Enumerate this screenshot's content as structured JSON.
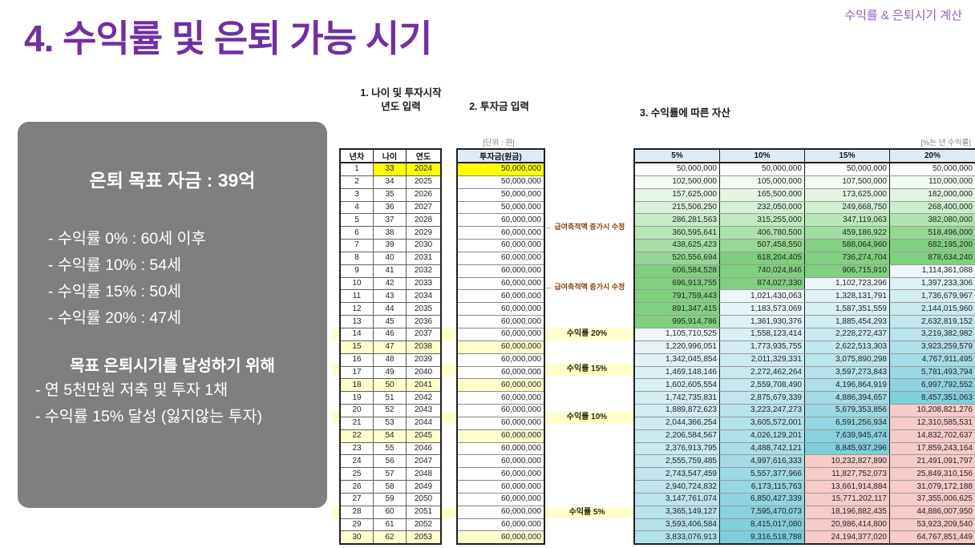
{
  "slide": {
    "title": "4. 수익률 및 은퇴 가능 시기",
    "corner_label": "수익률 & 은퇴시기 계산"
  },
  "summary_panel": {
    "title": "은퇴 목표 자금 : 39억",
    "rate_lines": [
      "- 수익률   0% : 60세 이후",
      "- 수익률 10% : 54세",
      "- 수익률 15% : 50세",
      "- 수익률 20% : 47세"
    ],
    "goal_title": "목표 은퇴시기를 달성하기 위해",
    "goal_lines": [
      "- 연 5천만원 저축 및 투자 1채",
      "- 수익률 15% 달성 (잃지않는 투자)"
    ]
  },
  "sections": {
    "step1_line1": "1. 나이 및 투자시작",
    "step1_line2": "년도 입력",
    "step2": "2. 투자금 입력",
    "step3": "3. 수익률에 따른 자산",
    "unit_note": "[단위 : 원]",
    "rate_note": "[%는 년 수익률]"
  },
  "table": {
    "left_headers": [
      "년차",
      "나이",
      "연도"
    ],
    "principal_header": "투자금(원금)",
    "rate_headers": [
      "5%",
      "10%",
      "15%",
      "20%"
    ],
    "increase_note": "← 급여축적액 증가시 수정",
    "rows": [
      {
        "n": "1",
        "age": "33",
        "year": "2024",
        "principal": "50,000,000",
        "note": "",
        "hl": false,
        "assets": [
          "50,000,000",
          "50,000,000",
          "50,000,000",
          "50,000,000"
        ]
      },
      {
        "n": "2",
        "age": "34",
        "year": "2025",
        "principal": "50,000,000",
        "note": "",
        "hl": false,
        "assets": [
          "102,500,000",
          "105,000,000",
          "107,500,000",
          "110,000,000"
        ]
      },
      {
        "n": "3",
        "age": "35",
        "year": "2026",
        "principal": "50,000,000",
        "note": "",
        "hl": false,
        "assets": [
          "157,625,000",
          "165,500,000",
          "173,625,000",
          "182,000,000"
        ]
      },
      {
        "n": "4",
        "age": "36",
        "year": "2027",
        "principal": "50,000,000",
        "note": "",
        "hl": false,
        "assets": [
          "215,506,250",
          "232,050,000",
          "249,668,750",
          "268,400,000"
        ]
      },
      {
        "n": "5",
        "age": "37",
        "year": "2028",
        "principal": "60,000,000",
        "note": "",
        "hl": false,
        "assets": [
          "286,281,563",
          "315,255,000",
          "347,119,063",
          "382,080,000"
        ]
      },
      {
        "n": "6",
        "age": "38",
        "year": "2029",
        "principal": "60,000,000",
        "note": "← 급여축적액 증가시 수정",
        "hl": false,
        "assets": [
          "360,595,641",
          "406,780,500",
          "459,186,922",
          "518,496,000"
        ]
      },
      {
        "n": "7",
        "age": "39",
        "year": "2030",
        "principal": "60,000,000",
        "note": "",
        "hl": false,
        "assets": [
          "438,625,423",
          "507,458,550",
          "588,064,960",
          "682,195,200"
        ]
      },
      {
        "n": "8",
        "age": "40",
        "year": "2031",
        "principal": "60,000,000",
        "note": "",
        "hl": false,
        "assets": [
          "520,556,694",
          "618,204,405",
          "736,274,704",
          "878,634,240"
        ]
      },
      {
        "n": "9",
        "age": "41",
        "year": "2032",
        "principal": "60,000,000",
        "note": "",
        "hl": false,
        "assets": [
          "606,584,528",
          "740,024,846",
          "906,715,910",
          "1,114,361,088"
        ]
      },
      {
        "n": "10",
        "age": "42",
        "year": "2033",
        "principal": "60,000,000",
        "note": "",
        "hl": false,
        "assets": [
          "696,913,755",
          "874,027,330",
          "1,102,723,296",
          "1,397,233,306"
        ]
      },
      {
        "n": "11",
        "age": "43",
        "year": "2034",
        "principal": "60,000,000",
        "note": "← 급여축적액 증가시 수정",
        "hl": false,
        "assets": [
          "791,759,443",
          "1,021,430,063",
          "1,328,131,791",
          "1,736,679,967"
        ]
      },
      {
        "n": "12",
        "age": "44",
        "year": "2035",
        "principal": "60,000,000",
        "note": "",
        "hl": false,
        "assets": [
          "891,347,415",
          "1,183,573,069",
          "1,587,351,559",
          "2,144,015,960"
        ]
      },
      {
        "n": "13",
        "age": "45",
        "year": "2036",
        "principal": "60,000,000",
        "note": "",
        "hl": false,
        "assets": [
          "995,914,786",
          "1,361,930,376",
          "1,885,454,293",
          "2,632,819,152"
        ]
      },
      {
        "n": "14",
        "age": "46",
        "year": "2037",
        "principal": "60,000,000",
        "note": "",
        "hl": false,
        "assets": [
          "1,105,710,525",
          "1,558,123,414",
          "2,228,272,437",
          "3,219,382,982"
        ]
      },
      {
        "n": "15",
        "age": "47",
        "year": "2038",
        "principal": "60,000,000",
        "note": "수익률 20%",
        "hl": true,
        "assets": [
          "1,220,996,051",
          "1,773,935,755",
          "2,622,513,303",
          "3,923,259,579"
        ]
      },
      {
        "n": "16",
        "age": "48",
        "year": "2039",
        "principal": "60,000,000",
        "note": "",
        "hl": false,
        "assets": [
          "1,342,045,854",
          "2,011,329,331",
          "3,075,890,298",
          "4,767,911,495"
        ]
      },
      {
        "n": "17",
        "age": "49",
        "year": "2040",
        "principal": "60,000,000",
        "note": "",
        "hl": false,
        "assets": [
          "1,469,148,146",
          "2,272,462,264",
          "3,597,273,843",
          "5,781,493,794"
        ]
      },
      {
        "n": "18",
        "age": "50",
        "year": "2041",
        "principal": "60,000,000",
        "note": "수익률 15%",
        "hl": true,
        "assets": [
          "1,602,605,554",
          "2,559,708,490",
          "4,196,864,919",
          "6,997,792,552"
        ]
      },
      {
        "n": "19",
        "age": "51",
        "year": "2042",
        "principal": "60,000,000",
        "note": "",
        "hl": false,
        "assets": [
          "1,742,735,831",
          "2,875,679,339",
          "4,886,394,657",
          "8,457,351,063"
        ]
      },
      {
        "n": "20",
        "age": "52",
        "year": "2043",
        "principal": "60,000,000",
        "note": "",
        "hl": false,
        "assets": [
          "1,889,872,623",
          "3,223,247,273",
          "5,679,353,856",
          "10,208,821,276"
        ]
      },
      {
        "n": "21",
        "age": "53",
        "year": "2044",
        "principal": "60,000,000",
        "note": "",
        "hl": false,
        "assets": [
          "2,044,366,254",
          "3,605,572,001",
          "6,591,256,934",
          "12,310,585,531"
        ]
      },
      {
        "n": "22",
        "age": "54",
        "year": "2045",
        "principal": "60,000,000",
        "note": "수익률 10%",
        "hl": true,
        "assets": [
          "2,206,584,567",
          "4,026,129,201",
          "7,639,945,474",
          "14,832,702,637"
        ]
      },
      {
        "n": "23",
        "age": "55",
        "year": "2046",
        "principal": "60,000,000",
        "note": "",
        "hl": false,
        "assets": [
          "2,376,913,795",
          "4,488,742,121",
          "8,845,937,296",
          "17,859,243,164"
        ]
      },
      {
        "n": "24",
        "age": "56",
        "year": "2047",
        "principal": "60,000,000",
        "note": "",
        "hl": false,
        "assets": [
          "2,555,759,485",
          "4,997,616,333",
          "10,232,827,890",
          "21,491,091,797"
        ]
      },
      {
        "n": "25",
        "age": "57",
        "year": "2048",
        "principal": "60,000,000",
        "note": "",
        "hl": false,
        "assets": [
          "2,743,547,459",
          "5,557,377,966",
          "11,827,752,073",
          "25,849,310,156"
        ]
      },
      {
        "n": "26",
        "age": "58",
        "year": "2049",
        "principal": "60,000,000",
        "note": "",
        "hl": false,
        "assets": [
          "2,940,724,832",
          "6,173,115,763",
          "13,661,914,884",
          "31,079,172,188"
        ]
      },
      {
        "n": "27",
        "age": "59",
        "year": "2050",
        "principal": "60,000,000",
        "note": "",
        "hl": false,
        "assets": [
          "3,147,761,074",
          "6,850,427,339",
          "15,771,202,117",
          "37,355,006,625"
        ]
      },
      {
        "n": "28",
        "age": "60",
        "year": "2051",
        "principal": "60,000,000",
        "note": "",
        "hl": false,
        "assets": [
          "3,365,149,127",
          "7,595,470,073",
          "18,196,882,435",
          "44,886,007,950"
        ]
      },
      {
        "n": "29",
        "age": "61",
        "year": "2052",
        "principal": "60,000,000",
        "note": "",
        "hl": false,
        "assets": [
          "3,593,406,584",
          "8,415,017,080",
          "20,986,414,800",
          "53,923,209,540"
        ]
      },
      {
        "n": "30",
        "age": "62",
        "year": "2053",
        "principal": "60,000,000",
        "note": "수익률 5%",
        "hl": true,
        "assets": [
          "3,833,076,913",
          "9,316,518,788",
          "24,194,377,020",
          "64,767,851,449"
        ]
      }
    ]
  },
  "colors": {
    "title_purple": "#7030A0",
    "corner_purple": "#8F5FC7",
    "panel_gray": "#7F7F7F",
    "input_yellow": "#FFFF00",
    "highlight_yellow": "#FFFFCC",
    "header_blue": "#DDEBF7",
    "note_dark_red": "#843C0C",
    "asset_green": "#7CCF7B",
    "asset_green_hold": "#80D17F",
    "asset_pale_blue": "#EDF6F9",
    "asset_cyan": "#7BCEDB",
    "asset_pink": "#F7CBCA",
    "white": "#FFFFFF"
  }
}
